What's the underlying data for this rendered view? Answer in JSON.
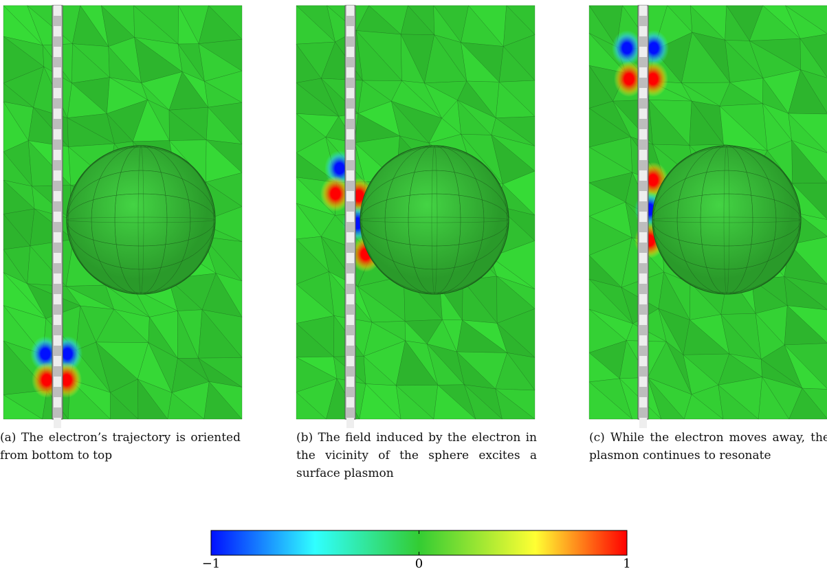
{
  "panels": [
    {
      "caption": "(a) The electron’s trajectory is oriented from bottom to top"
    },
    {
      "caption": "(b) The field induced by the electron in the vicinity of the sphere excites a surface plasmon"
    },
    {
      "caption": "(c) While the electron moves away, the plasmon continues to resonate"
    }
  ],
  "colorbar": {
    "lim": [
      -1,
      1
    ],
    "ticks": [
      {
        "value": -1,
        "label": "−1"
      },
      0,
      1
    ]
  }
}
